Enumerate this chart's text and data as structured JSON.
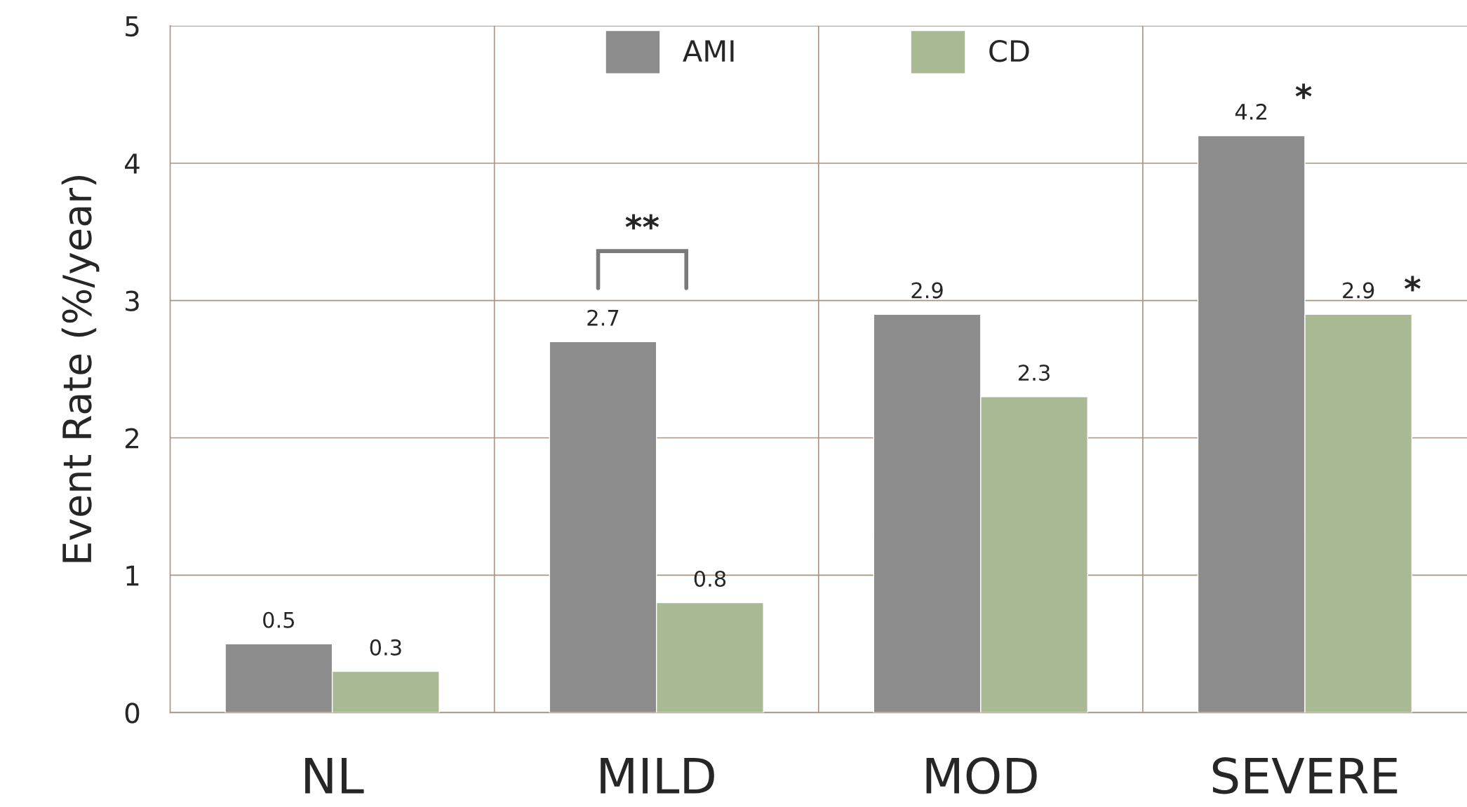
{
  "chart_data": {
    "type": "bar",
    "ylabel": "Event Rate (%/year)",
    "categories": [
      "NL",
      "MILD",
      "MOD",
      "SEVERE"
    ],
    "series": [
      {
        "name": "AMI",
        "color": "#8c8c8c",
        "values": [
          0.5,
          2.7,
          2.9,
          4.2
        ]
      },
      {
        "name": "CD",
        "color": "#a9b994",
        "values": [
          0.3,
          0.8,
          2.3,
          2.9
        ]
      }
    ],
    "ylim": [
      0,
      5
    ],
    "yticks": [
      0,
      1,
      2,
      3,
      4,
      5
    ],
    "grid": true,
    "legend": "top",
    "data_labels": true,
    "annotations": [
      "**",
      "*",
      "*"
    ]
  }
}
